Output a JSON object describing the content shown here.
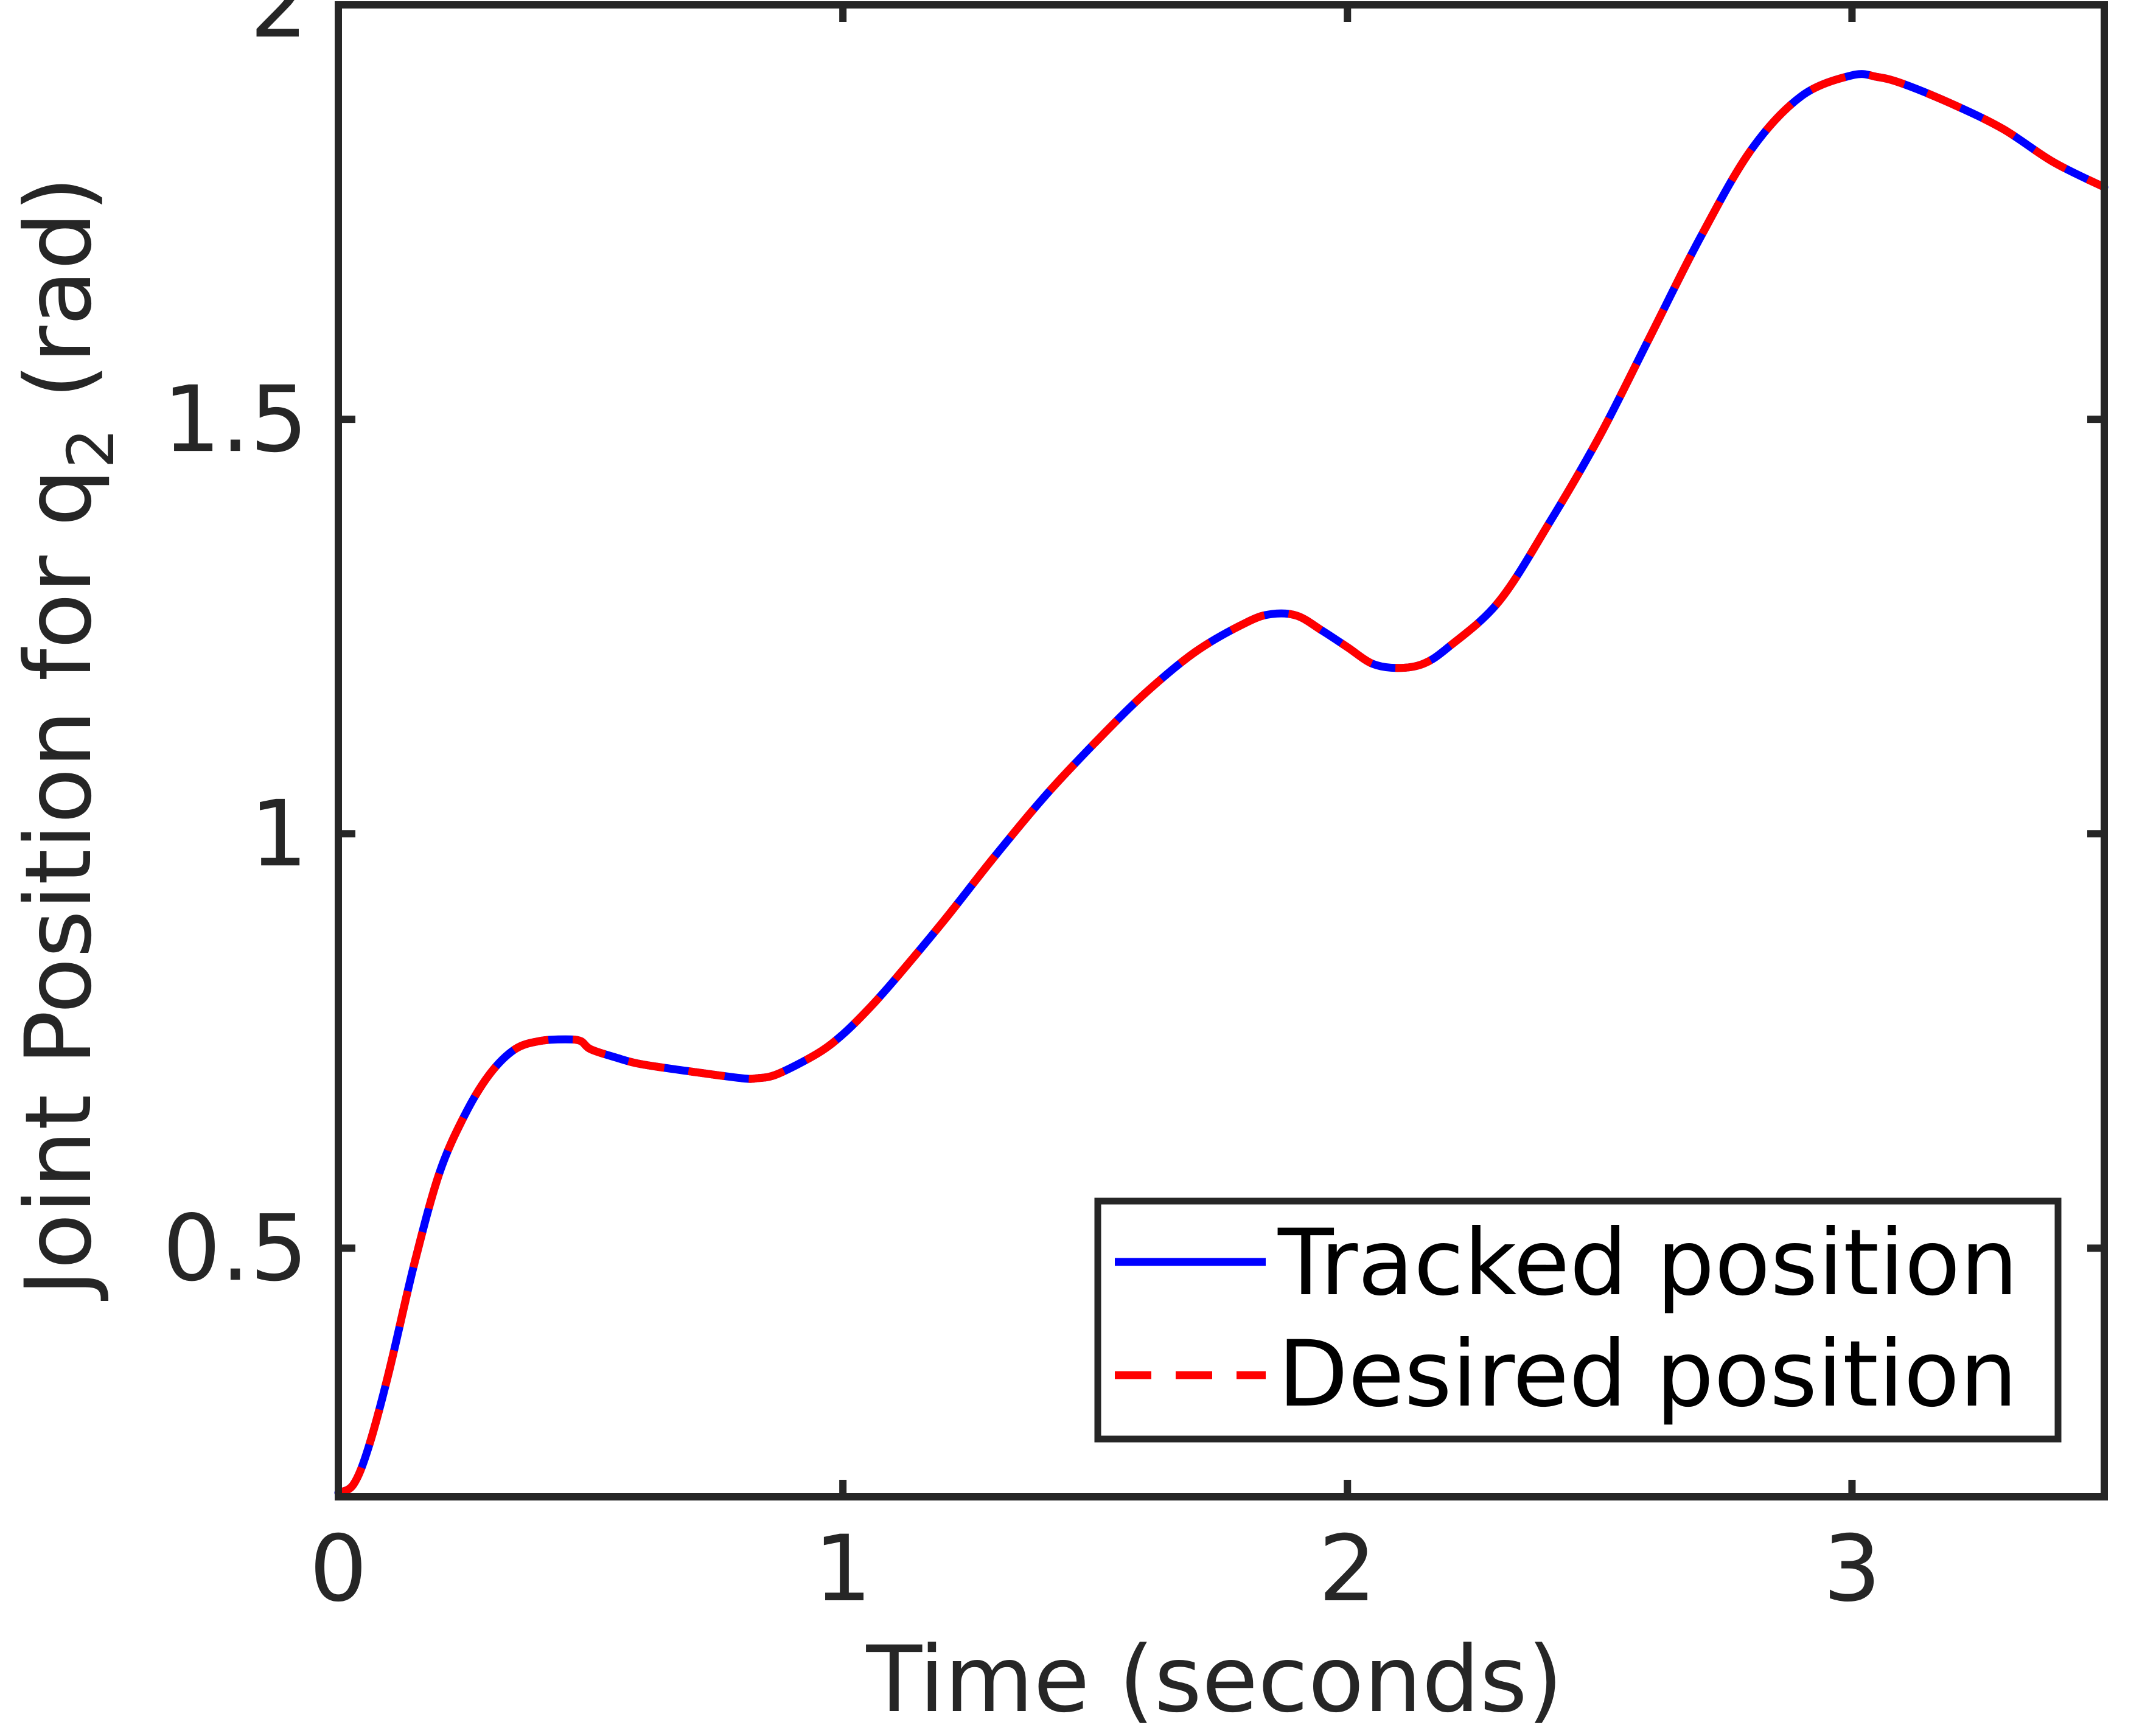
{
  "chart_data": {
    "type": "line",
    "title": "",
    "xlabel": "Time (seconds)",
    "ylabel_main": "Joint Position for q",
    "ylabel_subscript": "2",
    "ylabel_unit": " (rad)",
    "xlim": [
      0,
      3.5
    ],
    "ylim": [
      0.2,
      2
    ],
    "xticks": [
      0,
      1,
      2,
      3
    ],
    "xtick_labels": [
      "0",
      "1",
      "2",
      "3"
    ],
    "yticks": [
      0.5,
      1,
      1.5,
      2
    ],
    "ytick_labels": [
      "0.5",
      "1",
      "1.5",
      "2"
    ],
    "grid": false,
    "legend_position": "bottom-right",
    "x": [
      0,
      0.03,
      0.06,
      0.1,
      0.15,
      0.2,
      0.25,
      0.3,
      0.35,
      0.4,
      0.45,
      0.48,
      0.5,
      0.55,
      0.6,
      0.7,
      0.8,
      0.83,
      0.87,
      0.95,
      1.0,
      1.05,
      1.1,
      1.2,
      1.3,
      1.4,
      1.5,
      1.6,
      1.7,
      1.8,
      1.85,
      1.9,
      1.95,
      2.0,
      2.05,
      2.1,
      2.15,
      2.2,
      2.3,
      2.4,
      2.5,
      2.6,
      2.7,
      2.8,
      2.9,
      3.0,
      3.05,
      3.1,
      3.2,
      3.3,
      3.4,
      3.5
    ],
    "series": [
      {
        "name": "Tracked position",
        "color": "#0000ff",
        "style": "solid",
        "values": [
          0.205,
          0.215,
          0.26,
          0.35,
          0.48,
          0.59,
          0.66,
          0.71,
          0.74,
          0.75,
          0.752,
          0.75,
          0.74,
          0.73,
          0.722,
          0.713,
          0.705,
          0.705,
          0.71,
          0.735,
          0.758,
          0.788,
          0.822,
          0.895,
          0.972,
          1.045,
          1.11,
          1.17,
          1.22,
          1.255,
          1.265,
          1.263,
          1.245,
          1.225,
          1.205,
          1.2,
          1.205,
          1.225,
          1.28,
          1.375,
          1.48,
          1.6,
          1.72,
          1.825,
          1.89,
          1.915,
          1.913,
          1.905,
          1.88,
          1.85,
          1.81,
          1.78
        ]
      },
      {
        "name": "Desired position",
        "color": "#ff0000",
        "style": "dashed",
        "values": [
          0.205,
          0.215,
          0.26,
          0.35,
          0.48,
          0.59,
          0.66,
          0.71,
          0.74,
          0.75,
          0.752,
          0.75,
          0.74,
          0.73,
          0.722,
          0.713,
          0.705,
          0.705,
          0.71,
          0.735,
          0.758,
          0.788,
          0.822,
          0.895,
          0.972,
          1.045,
          1.11,
          1.17,
          1.22,
          1.255,
          1.265,
          1.263,
          1.245,
          1.225,
          1.205,
          1.2,
          1.205,
          1.225,
          1.28,
          1.375,
          1.48,
          1.6,
          1.72,
          1.825,
          1.89,
          1.915,
          1.913,
          1.905,
          1.88,
          1.85,
          1.81,
          1.78
        ]
      }
    ]
  }
}
